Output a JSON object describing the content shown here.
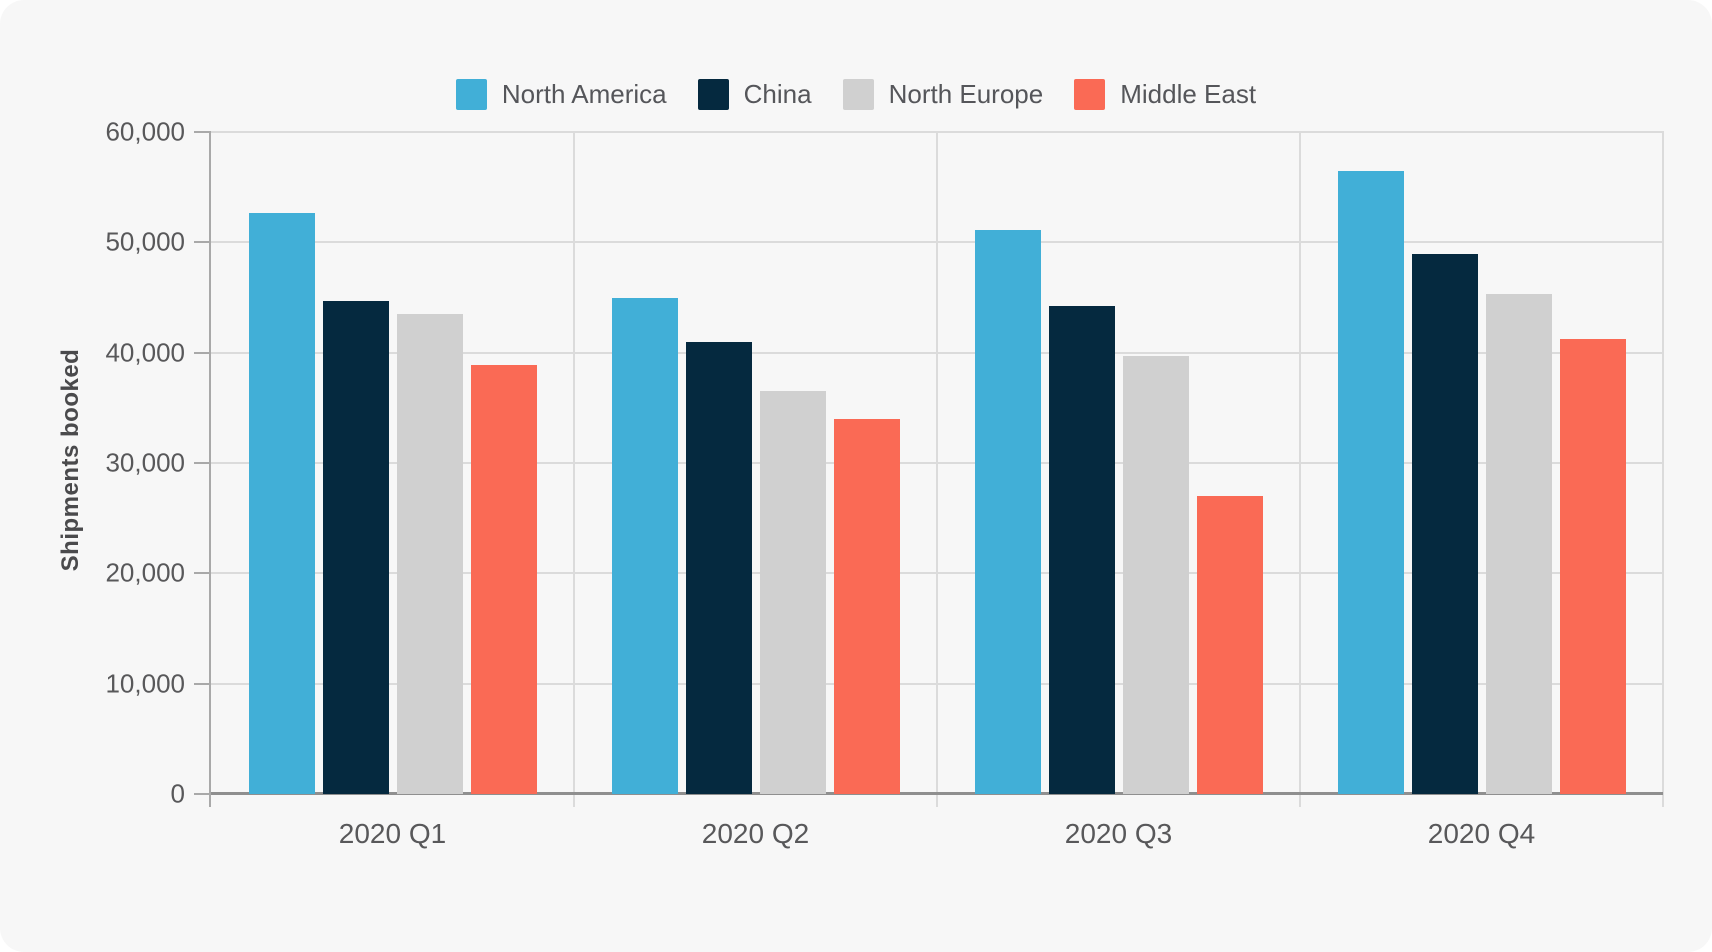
{
  "page": {
    "background": "#FFFFFF",
    "card_background": "#F7F7F7"
  },
  "chart_data": {
    "type": "bar",
    "title": "",
    "xlabel": "",
    "ylabel": "Shipments booked",
    "categories": [
      "2020 Q1",
      "2020 Q2",
      "2020 Q3",
      "2020 Q4"
    ],
    "series": [
      {
        "name": "North America",
        "color": "#41AFD7",
        "values": [
          52700,
          45000,
          51100,
          56500
        ]
      },
      {
        "name": "China",
        "color": "#05293F",
        "values": [
          44700,
          41000,
          44200,
          48900
        ]
      },
      {
        "name": "North Europe",
        "color": "#D0D0D0",
        "values": [
          43500,
          36500,
          39700,
          45300
        ]
      },
      {
        "name": "Middle East",
        "color": "#FA6A55",
        "values": [
          38900,
          34000,
          27000,
          41200
        ]
      }
    ],
    "ylim": [
      0,
      60000
    ],
    "ytick_step": 10000,
    "ytick_labels": [
      "0",
      "10,000",
      "20,000",
      "30,000",
      "40,000",
      "50,000",
      "60,000"
    ],
    "grid": true,
    "legend_position": "top",
    "colors": {
      "grid": "#DBDBDB",
      "axis": "#A9A9A9",
      "baseline": "#8F8F8F",
      "tick_text": "#58585A",
      "axis_title_text": "#4A4A4C",
      "legend_text": "#55565A"
    }
  }
}
